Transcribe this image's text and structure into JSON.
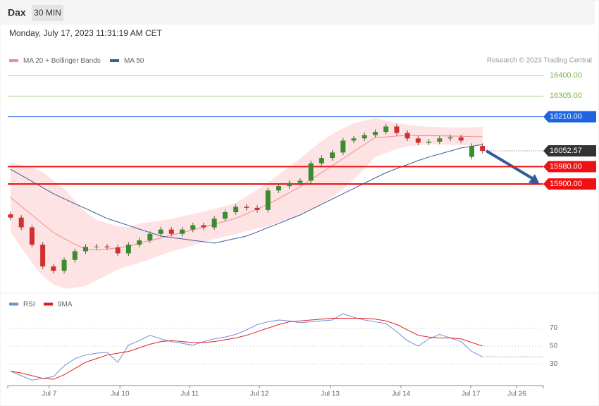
{
  "header": {
    "instrument": "Dax",
    "interval": "30 MIN",
    "timestamp": "Monday, July 17, 2023 11:31:19 AM CET",
    "credit": "Research © 2023 Trading Central"
  },
  "chart_data": [
    {
      "type": "candlestick",
      "up_color": "#3d8b2f",
      "down_color": "#d32f2f",
      "xlim": [
        -0.26,
        49.67
      ],
      "ylim": [
        15416,
        16423
      ],
      "open": [
        15760,
        15745,
        15700,
        15620,
        15520,
        15500,
        15550,
        15590,
        15610,
        15612,
        15608,
        15580,
        15620,
        15640,
        15670,
        15690,
        15670,
        15690,
        15710,
        15700,
        15740,
        15770,
        15795,
        15790,
        15780,
        15870,
        15890,
        15905,
        15915,
        15995,
        16020,
        16045,
        16100,
        16110,
        16125,
        16140,
        16165,
        16135,
        16110,
        16090,
        16095,
        16110,
        16115,
        16025,
        16075
      ],
      "high": [
        15772,
        15757,
        15712,
        15632,
        15532,
        15562,
        15602,
        15622,
        15624,
        15624,
        15620,
        15632,
        15652,
        15682,
        15702,
        15702,
        15702,
        15722,
        15722,
        15752,
        15782,
        15807,
        15807,
        15802,
        15882,
        15902,
        15917,
        15927,
        16007,
        16032,
        16057,
        16112,
        16122,
        16137,
        16152,
        16177,
        16177,
        16147,
        16122,
        16107,
        16122,
        16127,
        16127,
        16087,
        16087
      ],
      "low": [
        15733,
        15688,
        15608,
        15508,
        15488,
        15488,
        15538,
        15578,
        15598,
        15596,
        15568,
        15568,
        15608,
        15628,
        15658,
        15658,
        15658,
        15678,
        15688,
        15688,
        15728,
        15758,
        15778,
        15768,
        15768,
        15858,
        15878,
        15893,
        15903,
        15983,
        16008,
        16033,
        16088,
        16098,
        16113,
        16128,
        16123,
        16098,
        16078,
        16078,
        16083,
        16098,
        16088,
        16013,
        16040.57
      ],
      "close": [
        15745,
        15700,
        15620,
        15520,
        15500,
        15550,
        15590,
        15610,
        15612,
        15608,
        15580,
        15620,
        15640,
        15670,
        15690,
        15670,
        15690,
        15710,
        15700,
        15740,
        15770,
        15795,
        15790,
        15780,
        15870,
        15890,
        15905,
        15915,
        15995,
        16020,
        16045,
        16100,
        16110,
        16125,
        16140,
        16165,
        16135,
        16110,
        16090,
        16095,
        16110,
        16115,
        16100,
        16075,
        16052.57
      ],
      "overlays": [
        {
          "name": "MA 20 + Bollinger Bands",
          "color": "#f28b8b",
          "band_color": "#fde3e3",
          "values": [
            15838,
            15797,
            15757,
            15716,
            15676,
            15649,
            15622,
            15600,
            15595,
            15600,
            15606,
            15612,
            15627,
            15639,
            15651,
            15664,
            15676,
            15689,
            15702,
            15715,
            15728,
            15741,
            15763,
            15784,
            15806,
            15833,
            15860,
            15887,
            15920,
            15952,
            15985,
            16017,
            16050,
            16082,
            16114,
            16117,
            16121,
            16124,
            16123,
            16123,
            16122,
            16121,
            16120,
            16119,
            16118
          ],
          "upper": [
            15998,
            15987,
            15977,
            15956,
            15916,
            15879,
            15822,
            15770,
            15735,
            15720,
            15706,
            15702,
            15717,
            15724,
            15731,
            15739,
            15751,
            15761,
            15772,
            15785,
            15798,
            15813,
            15843,
            15874,
            15906,
            15943,
            15980,
            16017,
            16060,
            16097,
            16130,
            16157,
            16180,
            16192,
            16204,
            16192,
            16181,
            16174,
            16168,
            16163,
            16162,
            16161,
            16160,
            16161,
            16163
          ],
          "lower": [
            15678,
            15607,
            15537,
            15476,
            15436,
            15419,
            15422,
            15430,
            15455,
            15480,
            15506,
            15522,
            15537,
            15554,
            15571,
            15589,
            15601,
            15617,
            15632,
            15645,
            15658,
            15669,
            15683,
            15694,
            15706,
            15723,
            15740,
            15757,
            15780,
            15807,
            15840,
            15877,
            15920,
            15972,
            16024,
            16042,
            16061,
            16074,
            16078,
            16083,
            16082,
            16081,
            16080,
            16077,
            16073
          ]
        },
        {
          "name": "MA 50",
          "color": "#3a5f9e",
          "values": [
            15968,
            15940,
            15912,
            15883,
            15855,
            15832,
            15809,
            15787,
            15764,
            15741,
            15725,
            15709,
            15692,
            15676,
            15660,
            15653,
            15647,
            15640,
            15634,
            15627,
            15638,
            15649,
            15660,
            15679,
            15699,
            15718,
            15738,
            15757,
            15782,
            15806,
            15831,
            15855,
            15879,
            15904,
            15928,
            15952,
            15971,
            15989,
            16008,
            16024,
            16038,
            16052,
            16066,
            16074,
            16082
          ]
        }
      ],
      "levels": [
        {
          "value": 16400,
          "label": "16400.00",
          "color": "#7cb342",
          "tag": false,
          "line_style": "solid"
        },
        {
          "value": 16305,
          "label": "16305.00",
          "color": "#7cb342",
          "tag": false,
          "line_style": "solid"
        },
        {
          "value": 16210,
          "label": "16210.00",
          "color": "#1e63e0",
          "tag": true,
          "line_style": "solid"
        },
        {
          "value": 16052.57,
          "label": "16052.57",
          "color": "#333333",
          "tag": true,
          "line_style": "dotted"
        },
        {
          "value": 15980,
          "label": "15980.00",
          "color": "#ee1111",
          "tag": true,
          "line_style": "solid"
        },
        {
          "value": 15900,
          "label": "15900.00",
          "color": "#ee1111",
          "tag": true,
          "line_style": "solid"
        }
      ]
    },
    {
      "type": "line",
      "xlim": [
        -0.26,
        49.67
      ],
      "ylim": [
        6,
        90
      ],
      "yticks": [
        30,
        50,
        70
      ],
      "xticks": [
        {
          "value": 3.6,
          "label": "Jul 7"
        },
        {
          "value": 10.2,
          "label": "Jul 10"
        },
        {
          "value": 16.7,
          "label": "Jul 11"
        },
        {
          "value": 23.2,
          "label": "Jul 12"
        },
        {
          "value": 29.8,
          "label": "Jul 13"
        },
        {
          "value": 36.4,
          "label": "Jul 14"
        },
        {
          "value": 42.9,
          "label": "Jul 17"
        },
        {
          "value": 47.2,
          "label": "Jul 26"
        }
      ],
      "series": [
        {
          "name": "RSI",
          "color": "#6f8fd8",
          "values": [
            22,
            17,
            12,
            14,
            16,
            28,
            36,
            40,
            42,
            43,
            32,
            51,
            56,
            62,
            58,
            55,
            53,
            51,
            55,
            58,
            60,
            63,
            68,
            74,
            77,
            79,
            78,
            76,
            77,
            78,
            79,
            86,
            82,
            79,
            77,
            75,
            66,
            56,
            50,
            58,
            63,
            59,
            55,
            44,
            38
          ]
        },
        {
          "name": "9MA",
          "color": "#e02020",
          "values": [
            22,
            20,
            17,
            14,
            13,
            18,
            25,
            32,
            36,
            40,
            42,
            44,
            48,
            52,
            55,
            56,
            55,
            54,
            54,
            55,
            57,
            59,
            62,
            66,
            70,
            74,
            77,
            78,
            79,
            80,
            81,
            81,
            81,
            81,
            80,
            78,
            74,
            68,
            62,
            60,
            59,
            59,
            58,
            54,
            50
          ]
        }
      ]
    }
  ]
}
